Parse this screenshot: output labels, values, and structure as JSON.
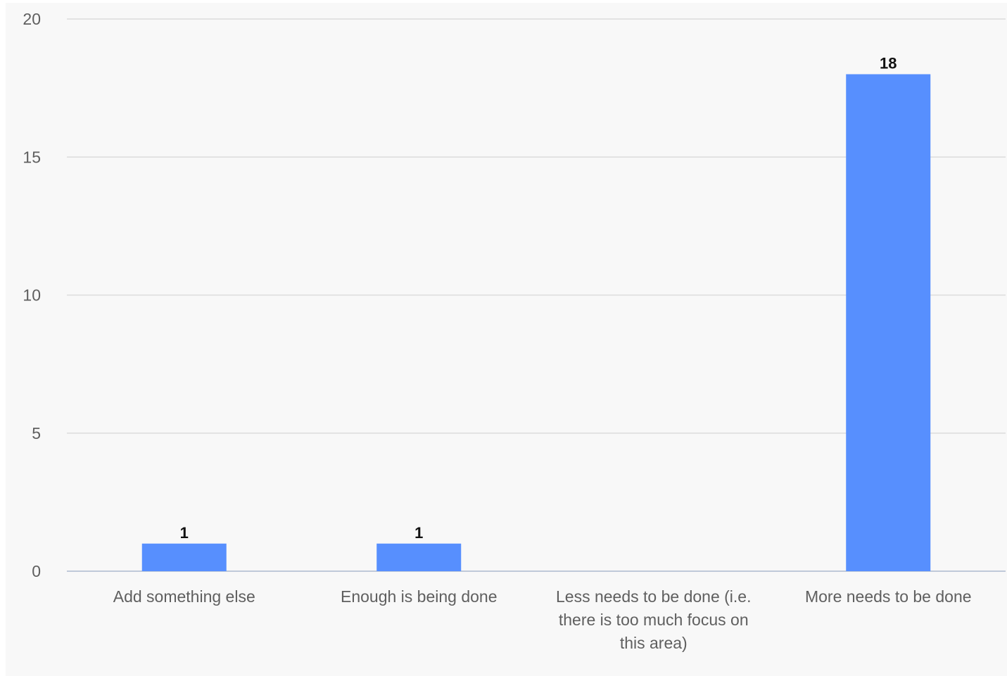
{
  "chart_data": {
    "type": "bar",
    "title": "",
    "xlabel": "",
    "ylabel": "",
    "categories": [
      "Add something else",
      "Enough is being done",
      "Less needs to be done (i.e. there is too much focus on this area)",
      "More needs to be done"
    ],
    "category_label_lines": [
      [
        "Add something else"
      ],
      [
        "Enough is being done"
      ],
      [
        "Less needs to be done (i.e.",
        "there is too much focus on",
        "this area)"
      ],
      [
        "More needs to be done"
      ]
    ],
    "values": [
      1,
      1,
      0,
      18
    ],
    "data_labels": [
      "1",
      "1",
      "",
      "18"
    ],
    "ylim": [
      0,
      20
    ],
    "yticks": [
      0,
      5,
      10,
      15,
      20
    ],
    "grid": true,
    "legend": "none",
    "colors": {
      "bar": "#578ffe",
      "grid": "#dcdcdc",
      "axis": "#bfc9d9",
      "background": "#f8f8f8"
    }
  }
}
